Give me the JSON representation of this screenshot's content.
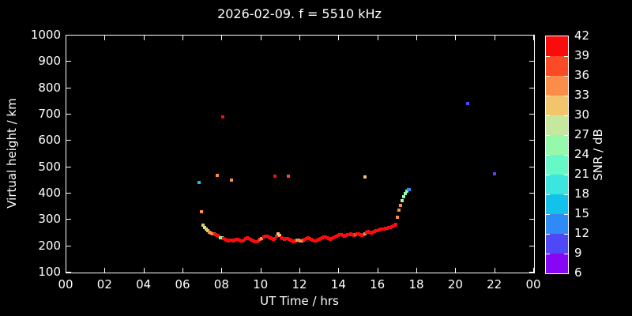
{
  "title": "2026-02-09. f = 5510 kHz",
  "axes": {
    "x_label": "UT Time / hrs",
    "y_label": "Virtual height / km",
    "x_tick_labels": [
      "00",
      "02",
      "04",
      "06",
      "08",
      "10",
      "12",
      "14",
      "16",
      "18",
      "20",
      "22",
      "00"
    ],
    "y_tick_labels": [
      "100",
      "200",
      "300",
      "400",
      "500",
      "600",
      "700",
      "800",
      "900",
      "1000"
    ]
  },
  "colorbar": {
    "label": "SNR / dB",
    "tick_labels": [
      "42",
      "39",
      "36",
      "33",
      "30",
      "27",
      "24",
      "21",
      "18",
      "15",
      "12",
      "9",
      "6"
    ],
    "segment_colors_top_to_bottom": [
      "#fb0b0b",
      "#fb4a26",
      "#fb8d4a",
      "#f2c56d",
      "#c6e79e",
      "#96f8ab",
      "#66f8c6",
      "#3ce6de",
      "#12c2ea",
      "#2e8af5",
      "#4f48f7",
      "#8707f5"
    ]
  },
  "chart_data": {
    "type": "scatter",
    "title": "2026-02-09. f = 5510 kHz",
    "xlabel": "UT Time / hrs",
    "ylabel": "Virtual height / km",
    "xlim": [
      0,
      24
    ],
    "ylim": [
      100,
      1000
    ],
    "grid": false,
    "colorbar": {
      "label": "SNR / dB",
      "min": 6,
      "max": 42,
      "step": 3
    },
    "palette": {
      "r": "#fb0b0b",
      "o": "#fb4a26",
      "O": "#fb8d4a",
      "s": "#f2c56d",
      "y": "#c6e79e",
      "g": "#96f8ab",
      "a": "#66f8c6",
      "t": "#3ce6de",
      "c": "#12c2ea",
      "b": "#2e8af5",
      "v": "#4f48f7",
      "p": "#8707f5"
    },
    "series": [
      {
        "name": "echo-trace",
        "points": [
          [
            6.93,
            330,
            "O"
          ],
          [
            7.01,
            280,
            "s"
          ],
          [
            7.09,
            270,
            "g"
          ],
          [
            7.17,
            265,
            "s"
          ],
          [
            7.25,
            258,
            "s"
          ],
          [
            7.34,
            254,
            "O"
          ],
          [
            7.42,
            251,
            "O"
          ],
          [
            7.5,
            248,
            "O"
          ],
          [
            7.58,
            248,
            "o"
          ],
          [
            7.66,
            245,
            "r"
          ],
          [
            7.74,
            241,
            "r"
          ],
          [
            7.82,
            238,
            "r"
          ],
          [
            7.91,
            232,
            "g"
          ],
          [
            7.99,
            232,
            "g"
          ],
          [
            8.07,
            229,
            "r"
          ],
          [
            8.15,
            226,
            "r"
          ],
          [
            8.23,
            223,
            "r"
          ],
          [
            8.31,
            220,
            "r"
          ],
          [
            8.39,
            223,
            "r"
          ],
          [
            8.47,
            223,
            "r"
          ],
          [
            8.55,
            220,
            "r"
          ],
          [
            8.63,
            223,
            "r"
          ],
          [
            8.72,
            226,
            "r"
          ],
          [
            8.8,
            226,
            "r"
          ],
          [
            8.88,
            223,
            "r"
          ],
          [
            8.96,
            220,
            "r"
          ],
          [
            9.04,
            220,
            "r"
          ],
          [
            9.12,
            223,
            "r"
          ],
          [
            9.2,
            229,
            "r"
          ],
          [
            9.28,
            232,
            "r"
          ],
          [
            9.37,
            229,
            "r"
          ],
          [
            9.45,
            226,
            "r"
          ],
          [
            9.53,
            223,
            "r"
          ],
          [
            9.61,
            220,
            "r"
          ],
          [
            9.69,
            217,
            "r"
          ],
          [
            9.77,
            217,
            "r"
          ],
          [
            9.85,
            220,
            "r"
          ],
          [
            9.93,
            226,
            "o"
          ],
          [
            10.01,
            229,
            "O"
          ],
          [
            10.13,
            235,
            "r"
          ],
          [
            10.21,
            238,
            "r"
          ],
          [
            10.3,
            238,
            "r"
          ],
          [
            10.38,
            235,
            "r"
          ],
          [
            10.46,
            232,
            "r"
          ],
          [
            10.54,
            229,
            "r"
          ],
          [
            10.62,
            226,
            "r"
          ],
          [
            10.7,
            229,
            "r"
          ],
          [
            10.78,
            238,
            "r"
          ],
          [
            10.86,
            247,
            "s"
          ],
          [
            10.95,
            241,
            "s"
          ],
          [
            11.03,
            232,
            "r"
          ],
          [
            11.11,
            229,
            "r"
          ],
          [
            11.19,
            226,
            "r"
          ],
          [
            11.27,
            229,
            "r"
          ],
          [
            11.35,
            229,
            "r"
          ],
          [
            11.43,
            226,
            "r"
          ],
          [
            11.51,
            223,
            "r"
          ],
          [
            11.6,
            220,
            "r"
          ],
          [
            11.68,
            217,
            "r"
          ],
          [
            11.76,
            220,
            "r"
          ],
          [
            11.84,
            223,
            "O"
          ],
          [
            11.92,
            223,
            "O"
          ],
          [
            12.0,
            220,
            "O"
          ],
          [
            12.08,
            220,
            "O"
          ],
          [
            12.16,
            223,
            "o"
          ],
          [
            12.24,
            226,
            "r"
          ],
          [
            12.32,
            229,
            "r"
          ],
          [
            12.4,
            232,
            "r"
          ],
          [
            12.49,
            229,
            "r"
          ],
          [
            12.57,
            226,
            "r"
          ],
          [
            12.65,
            223,
            "r"
          ],
          [
            12.73,
            220,
            "r"
          ],
          [
            12.81,
            220,
            "r"
          ],
          [
            12.89,
            223,
            "r"
          ],
          [
            12.97,
            226,
            "r"
          ],
          [
            13.05,
            229,
            "r"
          ],
          [
            13.13,
            232,
            "r"
          ],
          [
            13.22,
            235,
            "r"
          ],
          [
            13.3,
            235,
            "r"
          ],
          [
            13.38,
            232,
            "r"
          ],
          [
            13.46,
            229,
            "r"
          ],
          [
            13.54,
            226,
            "r"
          ],
          [
            13.62,
            229,
            "r"
          ],
          [
            13.7,
            232,
            "r"
          ],
          [
            13.78,
            235,
            "r"
          ],
          [
            13.86,
            238,
            "r"
          ],
          [
            13.95,
            241,
            "r"
          ],
          [
            14.03,
            244,
            "r"
          ],
          [
            14.11,
            244,
            "r"
          ],
          [
            14.19,
            241,
            "r"
          ],
          [
            14.27,
            238,
            "r"
          ],
          [
            14.35,
            241,
            "r"
          ],
          [
            14.43,
            244,
            "r"
          ],
          [
            14.51,
            244,
            "r"
          ],
          [
            14.59,
            247,
            "r"
          ],
          [
            14.68,
            244,
            "r"
          ],
          [
            14.76,
            241,
            "r"
          ],
          [
            14.84,
            244,
            "o"
          ],
          [
            14.92,
            247,
            "r"
          ],
          [
            15.0,
            247,
            "r"
          ],
          [
            15.08,
            244,
            "r"
          ],
          [
            15.16,
            241,
            "r"
          ],
          [
            15.24,
            244,
            "r"
          ],
          [
            15.32,
            247,
            "O"
          ],
          [
            15.41,
            254,
            "r"
          ],
          [
            15.49,
            257,
            "r"
          ],
          [
            15.57,
            254,
            "r"
          ],
          [
            15.65,
            251,
            "r"
          ],
          [
            15.73,
            254,
            "r"
          ],
          [
            15.81,
            257,
            "r"
          ],
          [
            15.89,
            260,
            "r"
          ],
          [
            15.97,
            260,
            "r"
          ],
          [
            16.06,
            263,
            "r"
          ],
          [
            16.14,
            266,
            "r"
          ],
          [
            16.22,
            266,
            "r"
          ],
          [
            16.3,
            266,
            "r"
          ],
          [
            16.38,
            269,
            "r"
          ],
          [
            16.46,
            269,
            "r"
          ],
          [
            16.54,
            272,
            "r"
          ],
          [
            16.62,
            272,
            "r"
          ],
          [
            16.7,
            275,
            "r"
          ],
          [
            16.78,
            278,
            "r"
          ],
          [
            16.86,
            281,
            "r"
          ],
          [
            16.9,
            284,
            "r"
          ],
          [
            16.99,
            311,
            "O"
          ],
          [
            17.07,
            338,
            "O"
          ],
          [
            17.15,
            356,
            "O"
          ],
          [
            17.23,
            374,
            "y"
          ],
          [
            17.31,
            389,
            "g"
          ],
          [
            17.39,
            401,
            "g"
          ],
          [
            17.47,
            410,
            "g"
          ],
          [
            17.55,
            416,
            "c"
          ],
          [
            17.59,
            416,
            "b"
          ]
        ]
      },
      {
        "name": "sporadic-echoes",
        "points": [
          [
            6.81,
            443,
            "c"
          ],
          [
            7.74,
            470,
            "O"
          ],
          [
            8.03,
            690,
            "r"
          ],
          [
            8.47,
            452,
            "O"
          ],
          [
            10.7,
            467,
            "r"
          ],
          [
            11.39,
            467,
            "o"
          ],
          [
            15.32,
            464,
            "s"
          ],
          [
            20.6,
            741,
            "v"
          ],
          [
            21.97,
            476,
            "v"
          ]
        ]
      }
    ]
  }
}
